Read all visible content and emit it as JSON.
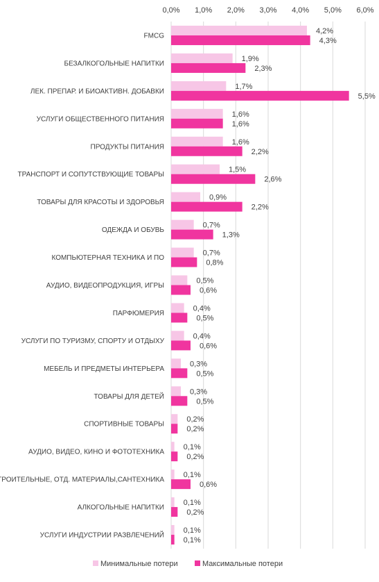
{
  "chart_data": {
    "type": "bar",
    "orientation": "horizontal",
    "title": "",
    "xlabel": "",
    "ylabel": "",
    "xlim": [
      0,
      6
    ],
    "xticks": [
      "0,0%",
      "1,0%",
      "2,0%",
      "3,0%",
      "4,0%",
      "5,0%",
      "6,0%"
    ],
    "xaxis_position": "top",
    "grid": true,
    "legend_position": "bottom",
    "categories": [
      "FMCG",
      "БЕЗАЛКОГОЛЬНЫЕ НАПИТКИ",
      "ЛЕК. ПРЕПАР. И БИОАКТИВН. ДОБАВКИ",
      "УСЛУГИ ОБЩЕСТВЕННОГО ПИТАНИЯ",
      "ПРОДУКТЫ ПИТАНИЯ",
      "ТРАНСПОРТ И СОПУТСТВУЮЩИЕ ТОВАРЫ",
      "ТОВАРЫ ДЛЯ КРАСОТЫ И ЗДОРОВЬЯ",
      "ОДЕЖДА И ОБУВЬ",
      "КОМПЬЮТЕРНАЯ ТЕХНИКА И ПО",
      "АУДИО, ВИДЕОПРОДУКЦИЯ, ИГРЫ",
      "ПАРФЮМЕРИЯ",
      "УСЛУГИ ПО ТУРИЗМУ, СПОРТУ И ОТДЫХУ",
      "МЕБЕЛЬ И ПРЕДМЕТЫ ИНТЕРЬЕРА",
      "ТОВАРЫ ДЛЯ ДЕТЕЙ",
      "СПОРТИВНЫЕ ТОВАРЫ",
      "АУДИО, ВИДЕО, КИНО И ФОТОТЕХНИКА",
      "СТРОИТЕЛЬНЫЕ, ОТД. МАТЕРИАЛЫ,САНТЕХНИКА",
      "АЛКОГОЛЬНЫЕ НАПИТКИ",
      "УСЛУГИ ИНДУСТРИИ РАЗВЛЕЧЕНИЙ"
    ],
    "series": [
      {
        "name": "Минимальные потери",
        "color": "#f7c6e6",
        "values": [
          4.2,
          1.9,
          1.7,
          1.6,
          1.6,
          1.5,
          0.9,
          0.7,
          0.7,
          0.5,
          0.4,
          0.4,
          0.3,
          0.3,
          0.2,
          0.1,
          0.1,
          0.1,
          0.1
        ],
        "labels": [
          "4,2%",
          "1,9%",
          "1,7%",
          "1,6%",
          "1,6%",
          "1,5%",
          "0,9%",
          "0,7%",
          "0,7%",
          "0,5%",
          "0,4%",
          "0,4%",
          "0,3%",
          "0,3%",
          "0,2%",
          "0,1%",
          "0,1%",
          "0,1%",
          "0,1%"
        ]
      },
      {
        "name": "Максимальные потери",
        "color": "#f0359f",
        "values": [
          4.3,
          2.3,
          5.5,
          1.6,
          2.2,
          2.6,
          2.2,
          1.3,
          0.8,
          0.6,
          0.5,
          0.6,
          0.5,
          0.5,
          0.2,
          0.2,
          0.6,
          0.2,
          0.1
        ],
        "labels": [
          "4,3%",
          "2,3%",
          "5,5%",
          "1,6%",
          "2,2%",
          "2,6%",
          "2,2%",
          "1,3%",
          "0,8%",
          "0,6%",
          "0,5%",
          "0,6%",
          "0,5%",
          "0,5%",
          "0,2%",
          "0,2%",
          "0,6%",
          "0,2%",
          "0,1%"
        ]
      }
    ],
    "colors": {
      "grid": "#d9d9d9",
      "text": "#404040"
    }
  }
}
